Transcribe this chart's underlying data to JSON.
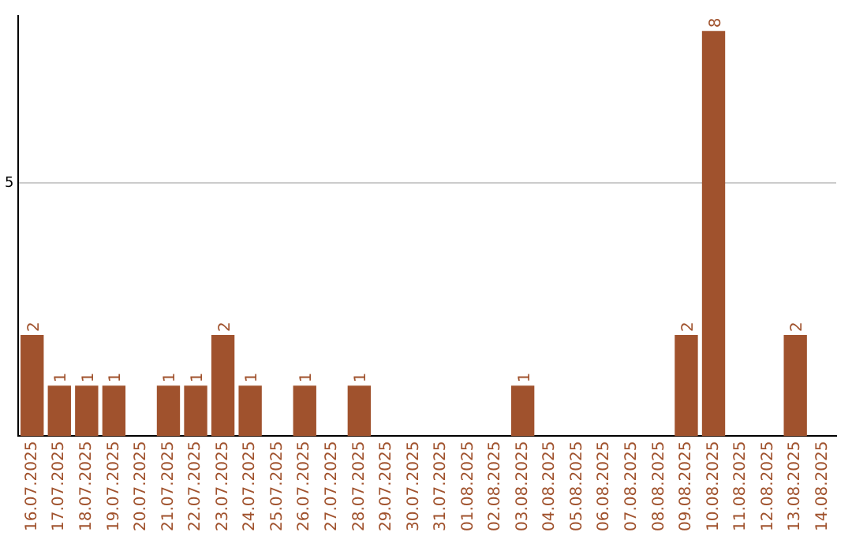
{
  "chart_data": {
    "type": "bar",
    "categories": [
      "16.07.2025",
      "17.07.2025",
      "18.07.2025",
      "19.07.2025",
      "20.07.2025",
      "21.07.2025",
      "22.07.2025",
      "23.07.2025",
      "24.07.2025",
      "25.07.2025",
      "26.07.2025",
      "27.07.2025",
      "28.07.2025",
      "29.07.2025",
      "30.07.2025",
      "31.07.2025",
      "01.08.2025",
      "02.08.2025",
      "03.08.2025",
      "04.08.2025",
      "05.08.2025",
      "06.08.2025",
      "07.08.2025",
      "08.08.2025",
      "09.08.2025",
      "10.08.2025",
      "11.08.2025",
      "12.08.2025",
      "13.08.2025",
      "14.08.2025"
    ],
    "values": [
      2,
      1,
      1,
      1,
      0,
      1,
      1,
      2,
      1,
      0,
      1,
      0,
      1,
      0,
      0,
      0,
      0,
      0,
      1,
      0,
      0,
      0,
      0,
      0,
      2,
      8,
      0,
      0,
      2,
      0
    ],
    "value_labels": [
      "2",
      "1",
      "1",
      "1",
      null,
      "1",
      "1",
      "2",
      "1",
      null,
      "1",
      null,
      "1",
      null,
      null,
      null,
      null,
      null,
      "1",
      null,
      null,
      null,
      null,
      null,
      "2",
      "8",
      null,
      null,
      "2",
      null
    ],
    "color": "#a0522d",
    "ylim": [
      0,
      8.3
    ],
    "yticks": [
      5
    ],
    "grid": "y",
    "legend": false
  }
}
